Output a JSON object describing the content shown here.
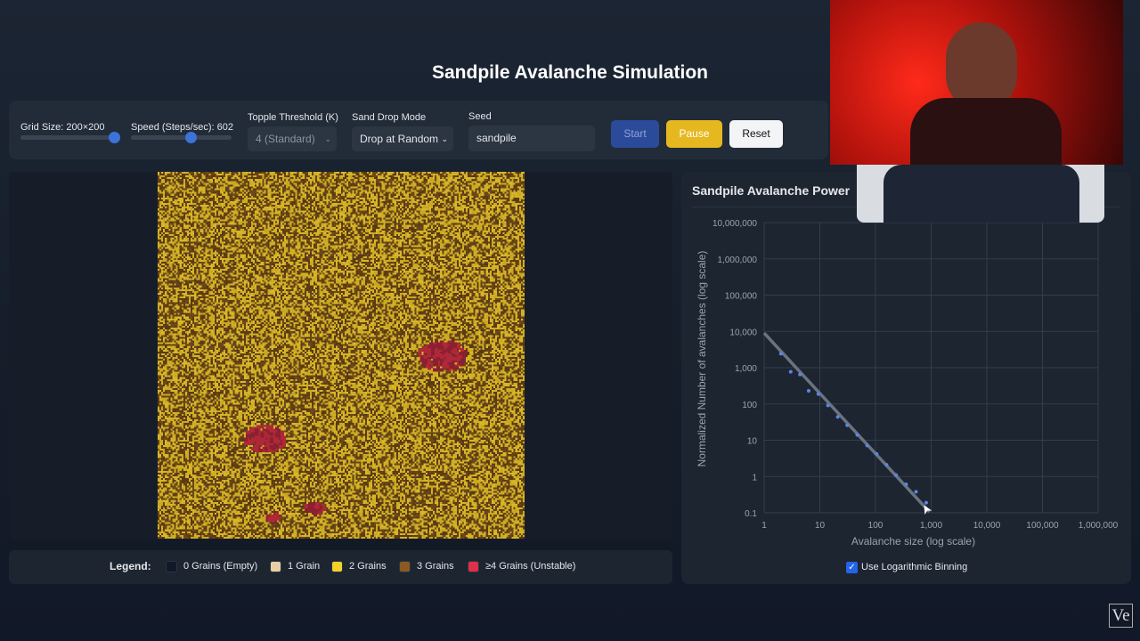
{
  "title": "Sandpile Avalanche Simulation",
  "controls": {
    "grid_size_label": "Grid Size: 200×200",
    "grid_size_value": 200,
    "grid_size_fraction": 1.0,
    "speed_label": "Speed (Steps/sec): 602",
    "speed_value": 602,
    "speed_fraction": 0.6,
    "threshold_label": "Topple Threshold (K)",
    "threshold_value": "4 (Standard)",
    "drop_mode_label": "Sand Drop Mode",
    "drop_mode_value": "Drop at Random",
    "seed_label": "Seed",
    "seed_value": "sandpile",
    "start": "Start",
    "pause": "Pause",
    "reset": "Reset",
    "colors": {
      "start": "#2c4a9a",
      "pause": "#e6b820",
      "reset": "#f3f4f6"
    }
  },
  "legend": {
    "title": "Legend:",
    "items": [
      {
        "label": "0 Grains (Empty)",
        "color": "#111827"
      },
      {
        "label": "1 Grain",
        "color": "#e8cfa6"
      },
      {
        "label": "2 Grains",
        "color": "#f2d12a"
      },
      {
        "label": "3 Grains",
        "color": "#8a5a22"
      },
      {
        "label": "≥4 Grains (Unstable)",
        "color": "#e0304a"
      }
    ]
  },
  "chart_panel": {
    "title": "Sandpile Avalanche Power",
    "checkbox_label": "Use Logarithmic Binning",
    "checkbox_checked": true
  },
  "chart_data": {
    "type": "scatter",
    "xlabel": "Avalanche size (log scale)",
    "ylabel": "Normalized Number of avalanches (log scale)",
    "xscale": "log",
    "yscale": "log",
    "xlim": [
      1,
      1000000
    ],
    "ylim": [
      0.1,
      10000000
    ],
    "xticks": [
      "1",
      "10",
      "100",
      "1,000",
      "10,000",
      "100,000",
      "1,000,000"
    ],
    "yticks": [
      "10,000,000",
      "1,000,000",
      "100,000",
      "10,000",
      "1,000",
      "100",
      "10",
      "1",
      "0.1"
    ],
    "grid": true,
    "points": [
      [
        2,
        2430
      ],
      [
        3,
        770
      ],
      [
        4.4,
        650
      ],
      [
        6.3,
        230
      ],
      [
        9.4,
        187
      ],
      [
        14,
        91
      ],
      [
        21,
        44
      ],
      [
        31,
        26
      ],
      [
        47,
        14
      ],
      [
        71,
        7.2
      ],
      [
        105,
        4.2
      ],
      [
        158,
        2.1
      ],
      [
        235,
        1.1
      ],
      [
        355,
        0.61
      ],
      [
        535,
        0.38
      ],
      [
        815,
        0.19
      ]
    ],
    "fit_line": {
      "x": [
        1,
        930
      ],
      "y": [
        9000,
        0.106
      ]
    },
    "colors": {
      "points": "#5b86e5",
      "fit": "#6b7280"
    }
  },
  "watermark": "Ve"
}
